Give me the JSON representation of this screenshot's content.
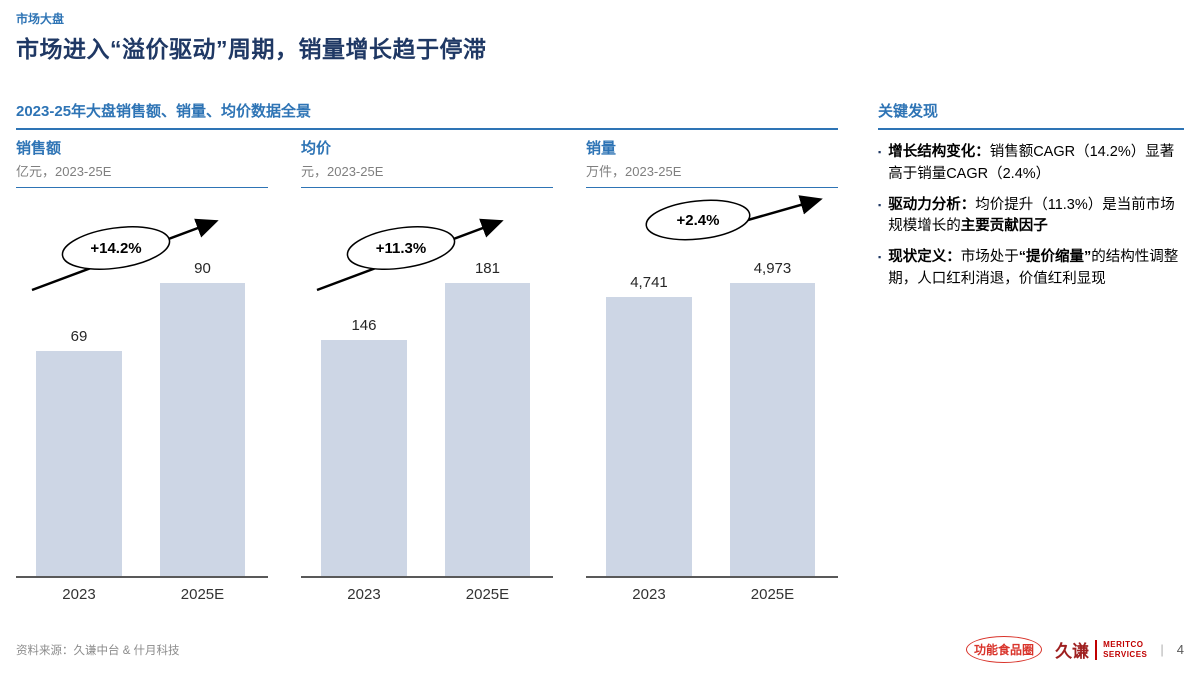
{
  "page": {
    "eyebrow": "市场大盘",
    "title": "市场进入“溢价驱动”周期，销量增长趋于停滞",
    "section_title": "2023-25年大盘销售额、销量、均价数据全景",
    "source": "资料来源：久谦中台 & 什月科技",
    "page_number": "4",
    "divider": "|"
  },
  "colors": {
    "accent_blue": "#2E74B5",
    "title_navy": "#1F3864",
    "bar_fill": "#CDD6E5",
    "logo_red": "#D9342B",
    "axis_gray": "#595959"
  },
  "chart_data": [
    {
      "type": "bar",
      "title": "销售额",
      "unit_label": "亿元，2023-25E",
      "categories": [
        "2023",
        "2025E"
      ],
      "values": [
        69,
        90
      ],
      "value_labels": [
        "69",
        "90"
      ],
      "growth_label": "+14.2%",
      "ylim": [
        0,
        100
      ],
      "grid": false,
      "legend": false
    },
    {
      "type": "bar",
      "title": "均价",
      "unit_label": "元，2023-25E",
      "categories": [
        "2023",
        "2025E"
      ],
      "values": [
        146,
        181
      ],
      "value_labels": [
        "146",
        "181"
      ],
      "growth_label": "+11.3%",
      "ylim": [
        0,
        200
      ],
      "grid": false,
      "legend": false
    },
    {
      "type": "bar",
      "title": "销量",
      "unit_label": "万件，2023-25E",
      "categories": [
        "2023",
        "2025E"
      ],
      "values": [
        4741,
        4973
      ],
      "value_labels": [
        "4,741",
        "4,973"
      ],
      "growth_label": "+2.4%",
      "ylim": [
        0,
        5500
      ],
      "grid": false,
      "legend": false
    }
  ],
  "findings": {
    "title": "关键发现",
    "bullets": [
      {
        "segments": [
          {
            "text": "增长结构变化：",
            "bold": true
          },
          {
            "text": "销售额CAGR（14.2%）显著高于销量CAGR（2.4%）",
            "bold": false
          }
        ]
      },
      {
        "segments": [
          {
            "text": "驱动力分析：",
            "bold": true
          },
          {
            "text": "均价提升（11.3%）是当前市场规模增长的",
            "bold": false
          },
          {
            "text": "主要贡献因子",
            "bold": true
          }
        ]
      },
      {
        "segments": [
          {
            "text": "现状定义：",
            "bold": true
          },
          {
            "text": "市场处于",
            "bold": false
          },
          {
            "text": "“提价缩量”",
            "bold": true
          },
          {
            "text": "的结构性调整期，人口红利消退，价值红利显现",
            "bold": false
          }
        ]
      }
    ]
  },
  "footer": {
    "logo1_text": "功能食品圈",
    "logo2_main": "久谦",
    "logo2_sub1": "MERITCO",
    "logo2_sub2": "SERVICES"
  }
}
